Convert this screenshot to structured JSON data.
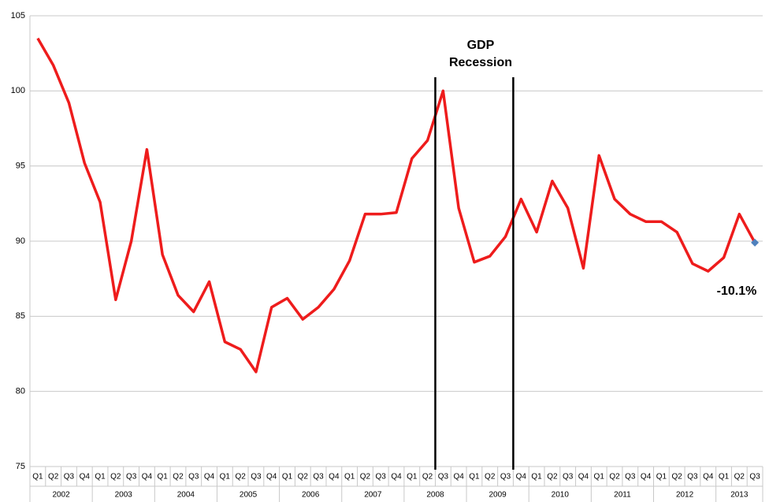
{
  "chart_data": {
    "type": "line",
    "categories": [
      "Q1",
      "Q2",
      "Q3",
      "Q4",
      "Q1",
      "Q2",
      "Q3",
      "Q4",
      "Q1",
      "Q2",
      "Q3",
      "Q4",
      "Q1",
      "Q2",
      "Q3",
      "Q4",
      "Q1",
      "Q2",
      "Q3",
      "Q4",
      "Q1",
      "Q2",
      "Q3",
      "Q4",
      "Q1",
      "Q2",
      "Q3",
      "Q4",
      "Q1",
      "Q2",
      "Q3",
      "Q4",
      "Q1",
      "Q2",
      "Q3",
      "Q4",
      "Q1",
      "Q2",
      "Q3",
      "Q4",
      "Q1",
      "Q2",
      "Q3",
      "Q4",
      "Q1",
      "Q2",
      "Q3"
    ],
    "years": [
      "2002",
      "2003",
      "2004",
      "2005",
      "2006",
      "2007",
      "2008",
      "2009",
      "2010",
      "2011",
      "2012",
      "2013"
    ],
    "series": [
      {
        "color": "#ee1c1c",
        "marker_color": "#4f81bd",
        "values": [
          103.5,
          101.7,
          99.2,
          95.2,
          92.6,
          86.1,
          90.0,
          96.1,
          89.1,
          86.4,
          85.3,
          87.3,
          83.3,
          82.8,
          81.3,
          85.6,
          86.2,
          84.8,
          85.6,
          86.8,
          88.7,
          91.8,
          91.8,
          91.9,
          95.5,
          96.7,
          100.0,
          92.2,
          88.6,
          89.0,
          90.3,
          92.8,
          90.6,
          94.0,
          92.2,
          88.2,
          95.7,
          92.8,
          91.8,
          91.3,
          91.3,
          90.6,
          88.5,
          88.0,
          88.9,
          91.8,
          89.9
        ]
      }
    ],
    "annotations": {
      "recession": [
        "GDP",
        "Recession"
      ],
      "last": "-10.1%"
    },
    "ylim": [
      75,
      105
    ],
    "yticks": [
      75,
      80,
      85,
      90,
      95,
      100,
      105
    ],
    "grid": true
  }
}
